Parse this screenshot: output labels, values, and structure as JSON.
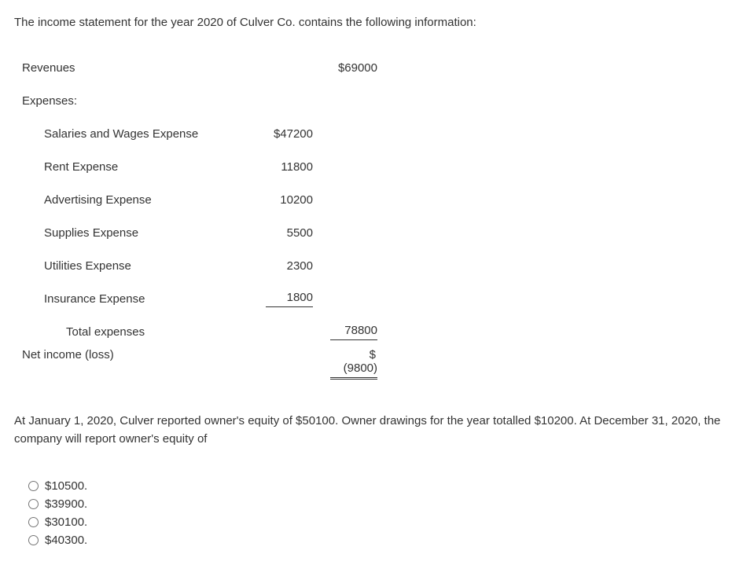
{
  "intro_text": "The income statement for the year 2020 of Culver Co. contains the following information:",
  "table": {
    "revenues": {
      "label": "Revenues",
      "value": "$69000"
    },
    "expenses_header": "Expenses:",
    "expenses": [
      {
        "label": "Salaries and Wages Expense",
        "value": "$47200"
      },
      {
        "label": "Rent Expense",
        "value": "11800"
      },
      {
        "label": "Advertising Expense",
        "value": "10200"
      },
      {
        "label": "Supplies Expense",
        "value": "5500"
      },
      {
        "label": "Utilities Expense",
        "value": "2300"
      },
      {
        "label": "Insurance Expense",
        "value": "1800"
      }
    ],
    "total_expenses": {
      "label": "Total expenses",
      "value": "78800"
    },
    "net_income": {
      "label": "Net income (loss)",
      "symbol": "$",
      "value": "(9800)"
    }
  },
  "question_text": "At January 1, 2020, Culver reported owner's equity of $50100. Owner drawings for the year totalled $10200. At December 31, 2020, the company will report owner's equity of",
  "options": [
    "$10500.",
    "$39900.",
    "$30100.",
    "$40300."
  ]
}
